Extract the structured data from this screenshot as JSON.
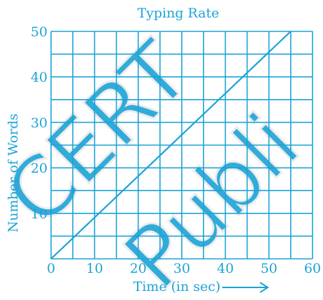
{
  "chart_data": {
    "type": "line",
    "title": "Typing Rate",
    "xlabel": "Time (in sec)",
    "ylabel": "Number of Words",
    "xlim": [
      0,
      60
    ],
    "ylim": [
      0,
      50
    ],
    "x_ticks": [
      "0",
      "10",
      "20",
      "30",
      "40",
      "50",
      "60"
    ],
    "y_ticks": [
      "10",
      "20",
      "30",
      "40",
      "50"
    ],
    "x_minor_step": 5,
    "y_minor_step": 5,
    "grid": true,
    "color": "#1ba3d6",
    "series": [
      {
        "x": [
          0,
          55
        ],
        "y": [
          0,
          50
        ]
      }
    ]
  },
  "watermark": "© NCERT not to be republished"
}
